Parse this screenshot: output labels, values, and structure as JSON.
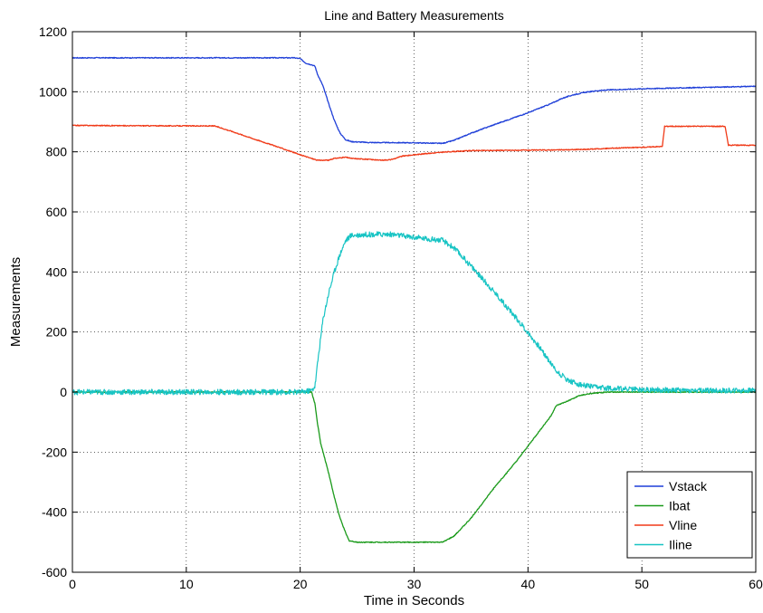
{
  "chart_data": {
    "type": "line",
    "title": "Line and Battery Measurements",
    "xlabel": "Time in Seconds",
    "ylabel": "Measurements",
    "xlim": [
      0,
      60
    ],
    "ylim": [
      -600,
      1200
    ],
    "xticks": [
      0,
      10,
      20,
      30,
      40,
      50,
      60
    ],
    "yticks": [
      -600,
      -400,
      -200,
      0,
      200,
      400,
      600,
      800,
      1000,
      1200
    ],
    "grid": true,
    "legend_position": "bottom-right",
    "series": [
      {
        "name": "Vstack",
        "color": "#1f3fd8",
        "noise": 1.5,
        "points": [
          [
            0,
            1113
          ],
          [
            10,
            1113
          ],
          [
            19.5,
            1113
          ],
          [
            20,
            1110
          ],
          [
            20.5,
            1095
          ],
          [
            21,
            1090
          ],
          [
            21.3,
            1085
          ],
          [
            21.5,
            1060
          ],
          [
            22,
            1020
          ],
          [
            22.5,
            960
          ],
          [
            23,
            905
          ],
          [
            23.5,
            862
          ],
          [
            24,
            840
          ],
          [
            24.5,
            834
          ],
          [
            26,
            831
          ],
          [
            30,
            830
          ],
          [
            32.5,
            828
          ],
          [
            33.5,
            838
          ],
          [
            35,
            862
          ],
          [
            37,
            890
          ],
          [
            40,
            930
          ],
          [
            42,
            960
          ],
          [
            43,
            978
          ],
          [
            44,
            990
          ],
          [
            45,
            998
          ],
          [
            46,
            1003
          ],
          [
            47,
            1006
          ],
          [
            50,
            1010
          ],
          [
            55,
            1014
          ],
          [
            60,
            1018
          ]
        ]
      },
      {
        "name": "Ibat",
        "color": "#1a9a1a",
        "noise": 1.5,
        "points": [
          [
            0,
            0
          ],
          [
            21,
            0
          ],
          [
            21.3,
            -40
          ],
          [
            21.5,
            -100
          ],
          [
            21.8,
            -170
          ],
          [
            22.5,
            -270
          ],
          [
            23,
            -350
          ],
          [
            23.5,
            -420
          ],
          [
            24,
            -470
          ],
          [
            24.3,
            -495
          ],
          [
            25,
            -500
          ],
          [
            30,
            -500
          ],
          [
            32.5,
            -500
          ],
          [
            33.5,
            -480
          ],
          [
            35,
            -420
          ],
          [
            37,
            -320
          ],
          [
            39,
            -230
          ],
          [
            41,
            -130
          ],
          [
            42,
            -80
          ],
          [
            42.5,
            -45
          ],
          [
            43.5,
            -30
          ],
          [
            44.5,
            -12
          ],
          [
            45.5,
            -5
          ],
          [
            47,
            0
          ],
          [
            60,
            0
          ]
        ]
      },
      {
        "name": "Vline",
        "color": "#f03a18",
        "noise": 1.5,
        "points": [
          [
            0,
            888
          ],
          [
            5,
            887
          ],
          [
            12.5,
            886
          ],
          [
            14,
            868
          ],
          [
            16,
            842
          ],
          [
            18,
            817
          ],
          [
            20,
            790
          ],
          [
            21.5,
            772
          ],
          [
            22.5,
            772
          ],
          [
            23,
            778
          ],
          [
            24,
            782
          ],
          [
            24.5,
            778
          ],
          [
            26,
            775
          ],
          [
            27,
            772
          ],
          [
            28,
            774
          ],
          [
            29,
            786
          ],
          [
            31,
            794
          ],
          [
            33,
            800
          ],
          [
            35,
            804
          ],
          [
            38,
            805
          ],
          [
            42,
            806
          ],
          [
            45,
            808
          ],
          [
            48,
            813
          ],
          [
            50,
            815
          ],
          [
            51.8,
            818
          ],
          [
            52,
            885
          ],
          [
            57.3,
            885
          ],
          [
            57.6,
            822
          ],
          [
            60,
            822
          ]
        ]
      },
      {
        "name": "Iline",
        "color": "#18c4c4",
        "noise": 9,
        "points": [
          [
            0,
            0
          ],
          [
            20,
            0
          ],
          [
            21,
            5
          ],
          [
            21.3,
            20
          ],
          [
            21.6,
            120
          ],
          [
            22,
            240
          ],
          [
            22.5,
            330
          ],
          [
            23,
            400
          ],
          [
            23.5,
            460
          ],
          [
            24,
            505
          ],
          [
            24.5,
            522
          ],
          [
            26,
            525
          ],
          [
            28,
            525
          ],
          [
            30,
            515
          ],
          [
            32.5,
            505
          ],
          [
            33.5,
            480
          ],
          [
            35,
            420
          ],
          [
            37,
            335
          ],
          [
            39,
            245
          ],
          [
            41,
            150
          ],
          [
            42.5,
            70
          ],
          [
            43.5,
            40
          ],
          [
            44.5,
            25
          ],
          [
            46,
            15
          ],
          [
            50,
            8
          ],
          [
            55,
            5
          ],
          [
            60,
            5
          ]
        ]
      }
    ]
  }
}
